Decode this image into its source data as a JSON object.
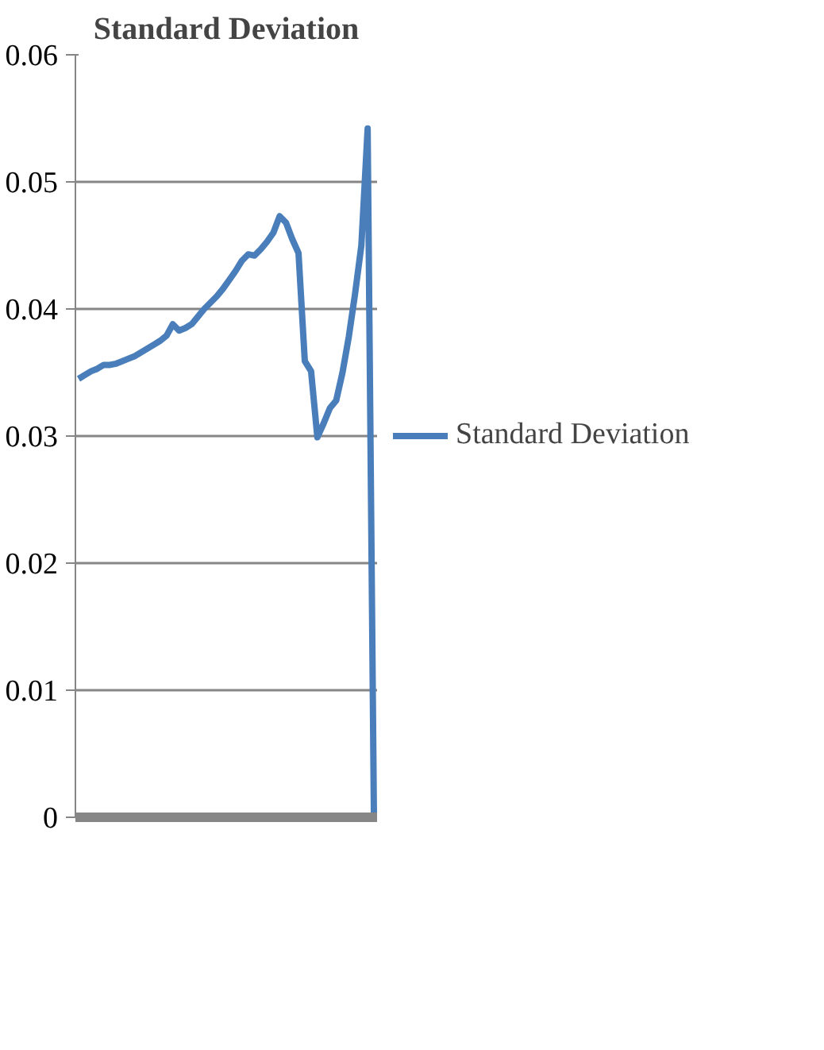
{
  "chart_data": {
    "type": "line",
    "title": "Standard Deviation",
    "categories": [
      null,
      null,
      null,
      null,
      null,
      null,
      null,
      null,
      null,
      null,
      null,
      null,
      null,
      null,
      null,
      null,
      null,
      null,
      null,
      null,
      null,
      null,
      null,
      null,
      null,
      null,
      null,
      null,
      null,
      null,
      null,
      null,
      null,
      null,
      null,
      null,
      null,
      null,
      null,
      null,
      null,
      null,
      null,
      null,
      null,
      null,
      null,
      null
    ],
    "series": [
      {
        "name": "Standard Deviation",
        "color": "#4a7ebb",
        "values": [
          0.0345,
          0.0348,
          0.0351,
          0.0353,
          0.0356,
          0.0356,
          0.0357,
          0.0359,
          0.0361,
          0.0363,
          0.0366,
          0.0369,
          0.0372,
          0.0375,
          0.0379,
          0.0388,
          0.0383,
          0.0385,
          0.0388,
          0.0394,
          0.04,
          0.0405,
          0.041,
          0.0416,
          0.0423,
          0.043,
          0.0438,
          0.0443,
          0.0442,
          0.0447,
          0.0453,
          0.046,
          0.0473,
          0.0468,
          0.0455,
          0.0444,
          0.0359,
          0.0351,
          0.0299,
          0.031,
          0.0322,
          0.0328,
          0.035,
          0.0378,
          0.0412,
          0.045,
          0.0542,
          0
        ]
      }
    ],
    "ylim": [
      0,
      0.06
    ],
    "yticks": [
      {
        "value": 0,
        "label": "0"
      },
      0.01,
      0.02,
      0.03,
      0.04,
      0.05,
      0.06
    ],
    "grid": "y",
    "legend": "right",
    "tick_labels": "y",
    "marker": "none",
    "line_style": "solid"
  }
}
